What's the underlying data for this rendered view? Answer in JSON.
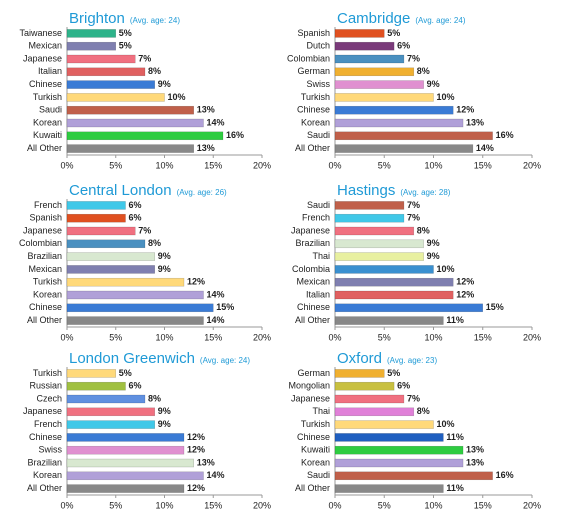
{
  "chart_data": [
    {
      "type": "bar",
      "horizontal": true,
      "title": "Brighton",
      "subtitle": "(Avg. age: 24)",
      "categories": [
        "Taiwanese",
        "Mexican",
        "Japanese",
        "Italian",
        "Chinese",
        "Turkish",
        "Saudi",
        "Korean",
        "Kuwaiti",
        "All Other"
      ],
      "values": [
        5,
        5,
        7,
        8,
        9,
        10,
        13,
        14,
        16,
        13
      ],
      "value_labels": [
        "5%",
        "5%",
        "7%",
        "8%",
        "9%",
        "10%",
        "13%",
        "14%",
        "16%",
        "13%"
      ],
      "colors": [
        "#2db38a",
        "#7f7fb0",
        "#f07080",
        "#e06060",
        "#3a7bd5",
        "#ffd97a",
        "#c0604a",
        "#b0a0d8",
        "#2ecc40",
        "#888888"
      ],
      "xlim": [
        0,
        20
      ],
      "xticks": [
        {
          "value": 0,
          "label": "0%"
        },
        {
          "value": 5,
          "label": "5%"
        },
        {
          "value": 10,
          "label": "10%"
        },
        {
          "value": 15,
          "label": "15%"
        },
        {
          "value": 20,
          "label": "20%"
        }
      ]
    },
    {
      "type": "bar",
      "horizontal": true,
      "title": "Cambridge",
      "subtitle": "(Avg. age: 24)",
      "categories": [
        "Spanish",
        "Dutch",
        "Colombian",
        "German",
        "Swiss",
        "Turkish",
        "Chinese",
        "Korean",
        "Saudi",
        "All Other"
      ],
      "values": [
        5,
        6,
        7,
        8,
        9,
        10,
        12,
        13,
        16,
        14
      ],
      "value_labels": [
        "5%",
        "6%",
        "7%",
        "8%",
        "9%",
        "10%",
        "12%",
        "13%",
        "16%",
        "14%"
      ],
      "colors": [
        "#e05020",
        "#7a3a7a",
        "#4a90c0",
        "#f0b030",
        "#e090d0",
        "#ffd97a",
        "#3a7bd5",
        "#b0a0d8",
        "#c0604a",
        "#888888"
      ],
      "xlim": [
        0,
        20
      ],
      "xticks": [
        {
          "value": 0,
          "label": "0%"
        },
        {
          "value": 5,
          "label": "5%"
        },
        {
          "value": 10,
          "label": "10%"
        },
        {
          "value": 15,
          "label": "15%"
        },
        {
          "value": 20,
          "label": "20%"
        }
      ]
    },
    {
      "type": "bar",
      "horizontal": true,
      "title": "Central London",
      "subtitle": "(Avg. age: 26)",
      "categories": [
        "French",
        "Spanish",
        "Japanese",
        "Colombian",
        "Brazilian",
        "Mexican",
        "Turkish",
        "Korean",
        "Chinese",
        "All Other"
      ],
      "values": [
        6,
        6,
        7,
        8,
        9,
        9,
        12,
        14,
        15,
        14
      ],
      "value_labels": [
        "6%",
        "6%",
        "7%",
        "8%",
        "9%",
        "9%",
        "12%",
        "14%",
        "15%",
        "14%"
      ],
      "colors": [
        "#40c8e8",
        "#e05020",
        "#f07080",
        "#4a90c0",
        "#d8e8d0",
        "#7f7fb0",
        "#ffd97a",
        "#b0a0d8",
        "#3a7bd5",
        "#888888"
      ],
      "xlim": [
        0,
        20
      ],
      "xticks": [
        {
          "value": 0,
          "label": "0%"
        },
        {
          "value": 5,
          "label": "5%"
        },
        {
          "value": 10,
          "label": "10%"
        },
        {
          "value": 15,
          "label": "15%"
        },
        {
          "value": 20,
          "label": "20%"
        }
      ]
    },
    {
      "type": "bar",
      "horizontal": true,
      "title": "Hastings",
      "subtitle": "(Avg. age: 28)",
      "categories": [
        "Saudi",
        "French",
        "Japanese",
        "Brazilian",
        "Thai",
        "Colombia",
        "Mexican",
        "Italian",
        "Chinese",
        "All Other"
      ],
      "values": [
        7,
        7,
        8,
        9,
        9,
        10,
        12,
        12,
        15,
        11
      ],
      "value_labels": [
        "7%",
        "7%",
        "8%",
        "9%",
        "9%",
        "10%",
        "12%",
        "12%",
        "15%",
        "11%"
      ],
      "colors": [
        "#c0604a",
        "#40c8e8",
        "#f07080",
        "#d8e8d0",
        "#e8f0a0",
        "#3a90d0",
        "#7f7fb0",
        "#e06060",
        "#3a7bd5",
        "#888888"
      ],
      "xlim": [
        0,
        20
      ],
      "xticks": [
        {
          "value": 0,
          "label": "0%"
        },
        {
          "value": 5,
          "label": "5%"
        },
        {
          "value": 10,
          "label": "10%"
        },
        {
          "value": 15,
          "label": "15%"
        },
        {
          "value": 20,
          "label": "20%"
        }
      ]
    },
    {
      "type": "bar",
      "horizontal": true,
      "title": "London Greenwich",
      "subtitle": "(Avg. age: 24)",
      "categories": [
        "Turkish",
        "Russian",
        "Czech",
        "Japanese",
        "French",
        "Chinese",
        "Swiss",
        "Brazilian",
        "Korean",
        "All Other"
      ],
      "values": [
        5,
        6,
        8,
        9,
        9,
        12,
        12,
        13,
        14,
        12
      ],
      "value_labels": [
        "5%",
        "6%",
        "8%",
        "9%",
        "9%",
        "12%",
        "12%",
        "13%",
        "14%",
        "12%"
      ],
      "colors": [
        "#ffd97a",
        "#a0c040",
        "#6090e0",
        "#f07080",
        "#40c8e8",
        "#3a7bd5",
        "#e090d0",
        "#d8e8d0",
        "#b0a0d8",
        "#888888"
      ],
      "xlim": [
        0,
        20
      ],
      "xticks": [
        {
          "value": 0,
          "label": "0%"
        },
        {
          "value": 5,
          "label": "5%"
        },
        {
          "value": 10,
          "label": "10%"
        },
        {
          "value": 15,
          "label": "15%"
        },
        {
          "value": 20,
          "label": "20%"
        }
      ]
    },
    {
      "type": "bar",
      "horizontal": true,
      "title": "Oxford",
      "subtitle": "(Avg. age: 23)",
      "categories": [
        "German",
        "Mongolian",
        "Japanese",
        "Thai",
        "Turkish",
        "Chinese",
        "Kuwaiti",
        "Korean",
        "Saudi",
        "All Other"
      ],
      "values": [
        5,
        6,
        7,
        8,
        10,
        11,
        13,
        13,
        16,
        11
      ],
      "value_labels": [
        "5%",
        "6%",
        "7%",
        "8%",
        "10%",
        "11%",
        "13%",
        "13%",
        "16%",
        "11%"
      ],
      "colors": [
        "#f0b030",
        "#c8c040",
        "#f07080",
        "#e080d8",
        "#ffd97a",
        "#1f5fc0",
        "#2ecc40",
        "#b0a0d8",
        "#c0604a",
        "#888888"
      ],
      "xlim": [
        0,
        20
      ],
      "xticks": [
        {
          "value": 0,
          "label": "0%"
        },
        {
          "value": 5,
          "label": "5%"
        },
        {
          "value": 10,
          "label": "10%"
        },
        {
          "value": 15,
          "label": "15%"
        },
        {
          "value": 20,
          "label": "20%"
        }
      ]
    }
  ]
}
